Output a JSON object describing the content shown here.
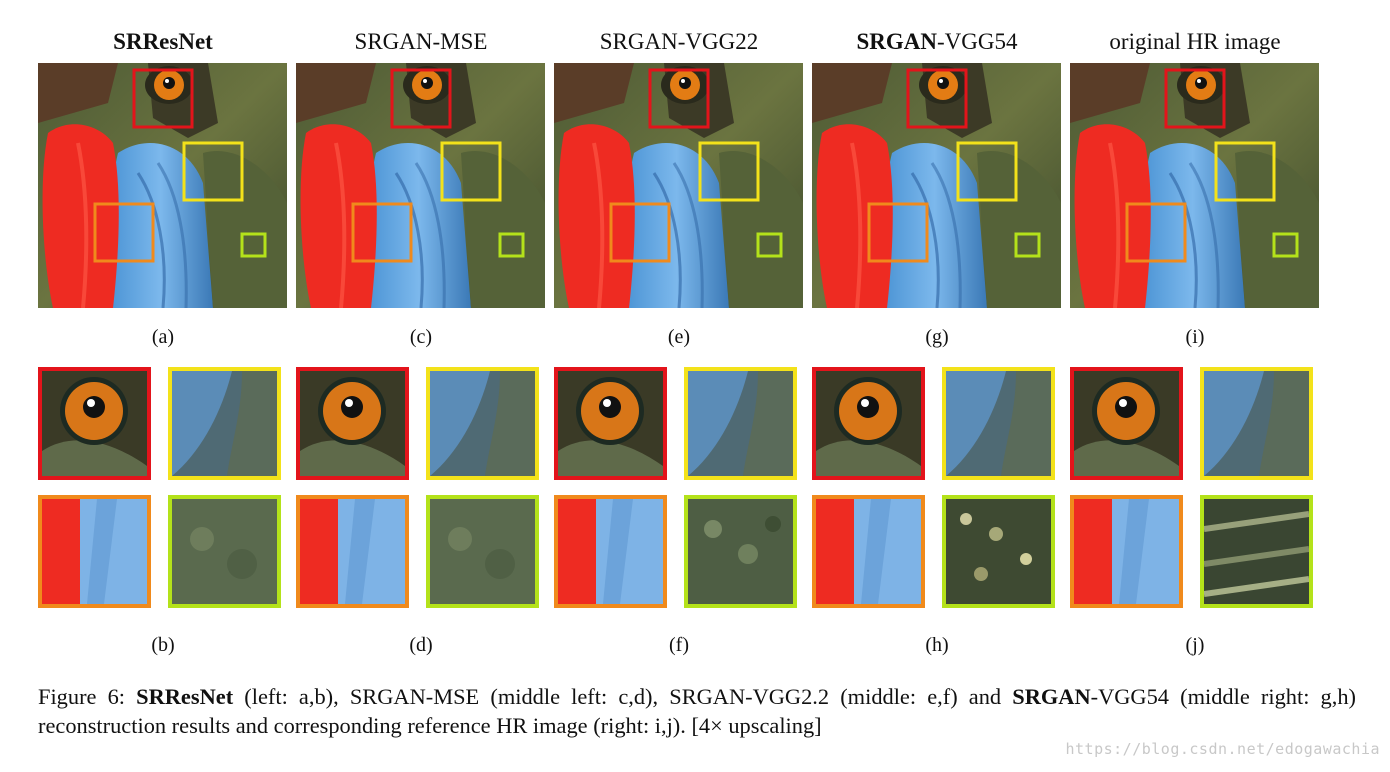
{
  "columns": [
    {
      "id": "a",
      "title_bold": "SRResNet",
      "title_rest": "",
      "label_top": "(a)",
      "label_bottom": "(b)"
    },
    {
      "id": "c",
      "title_bold": "",
      "title_rest": "SRGAN-MSE",
      "label_top": "(c)",
      "label_bottom": "(d)"
    },
    {
      "id": "e",
      "title_bold": "",
      "title_rest": "SRGAN-VGG22",
      "label_top": "(e)",
      "label_bottom": "(f)"
    },
    {
      "id": "g",
      "title_bold": "SRGAN",
      "title_rest": "-VGG54",
      "label_top": "(g)",
      "label_bottom": "(h)"
    },
    {
      "id": "i",
      "title_bold": "",
      "title_rest": "original HR image",
      "label_top": "(i)",
      "label_bottom": "(j)"
    }
  ],
  "roi_colors": {
    "red": "#e3141b",
    "yellow": "#f3e21a",
    "orange": "#f08a1c",
    "green": "#b4e21a"
  },
  "caption": {
    "p1": "Figure 6: ",
    "b1": "SRResNet",
    "p2": " (left: a,b), SRGAN-MSE (middle left: c,d), SRGAN-VGG2.2 (middle: e,f) and ",
    "b2": "SRGAN",
    "p3": "-VGG54 (middle right: g,h) reconstruction results and corresponding reference HR image (right: i,j). [4× upscaling]"
  },
  "watermark": "https://blog.csdn.net/edogawachia"
}
